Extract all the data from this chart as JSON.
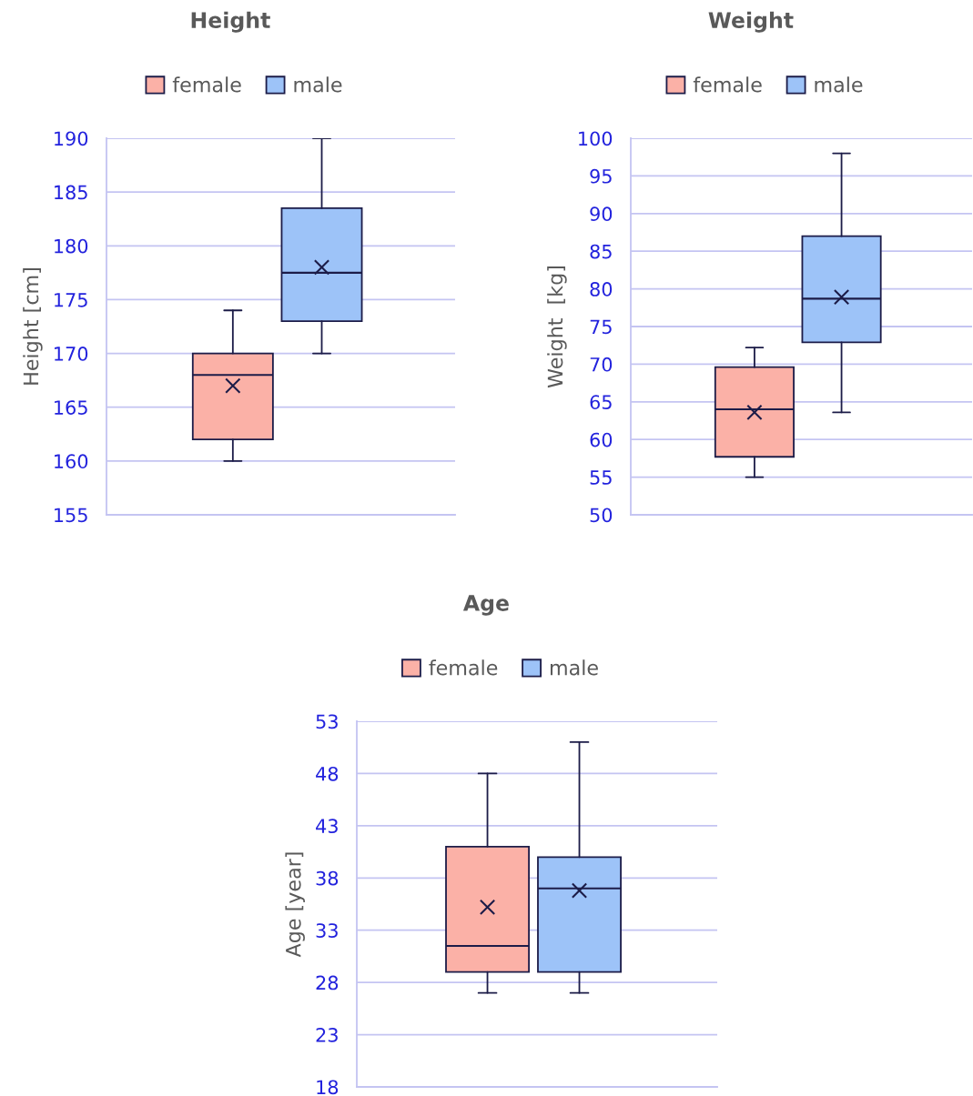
{
  "chart_data": [
    {
      "type": "box",
      "title": "Height",
      "ylabel": "Height [cm]",
      "categories": [
        null
      ],
      "ylim": [
        155,
        190
      ],
      "yticks": [
        155,
        160,
        165,
        170,
        175,
        180,
        185,
        190
      ],
      "grid": "y",
      "legend": "top",
      "tick_labels": "y",
      "marker": "cross",
      "series": [
        {
          "name": "female",
          "color": "#fbb1a7",
          "boxes": [
            {
              "low": 160,
              "q1": 162,
              "median": 168,
              "q3": 170,
              "high": 174,
              "mean": 167
            }
          ]
        },
        {
          "name": "male",
          "color": "#9dc3f8",
          "boxes": [
            {
              "low": 170,
              "q1": 173,
              "median": 177.5,
              "q3": 183.5,
              "high": 190,
              "mean": 178
            }
          ]
        }
      ]
    },
    {
      "type": "box",
      "title": "Weight",
      "ylabel": "Weight  [kg]",
      "categories": [
        null
      ],
      "ylim": [
        50,
        100
      ],
      "yticks": [
        50,
        55,
        60,
        65,
        70,
        75,
        80,
        85,
        90,
        95,
        100
      ],
      "grid": "y",
      "legend": "top",
      "tick_labels": "y",
      "marker": "cross",
      "series": [
        {
          "name": "female",
          "color": "#fbb1a7",
          "boxes": [
            {
              "low": 55,
              "q1": 57.7,
              "median": 64,
              "q3": 69.6,
              "high": 72.2,
              "mean": 63.6
            }
          ]
        },
        {
          "name": "male",
          "color": "#9dc3f8",
          "boxes": [
            {
              "low": 63.6,
              "q1": 72.9,
              "median": 78.7,
              "q3": 87,
              "high": 98,
              "mean": 78.9
            }
          ]
        }
      ]
    },
    {
      "type": "box",
      "title": "Age",
      "ylabel": "Age [year]",
      "categories": [
        null
      ],
      "ylim": [
        18,
        53
      ],
      "yticks": [
        18,
        23,
        28,
        33,
        38,
        43,
        48,
        53
      ],
      "grid": "y",
      "legend": "top",
      "tick_labels": "y",
      "marker": "cross",
      "series": [
        {
          "name": "female",
          "color": "#fbb1a7",
          "boxes": [
            {
              "low": 27,
              "q1": 29,
              "median": 31.5,
              "q3": 41,
              "high": 48,
              "mean": 35.2
            }
          ]
        },
        {
          "name": "male",
          "color": "#9dc3f8",
          "boxes": [
            {
              "low": 27,
              "q1": 29,
              "median": 37,
              "q3": 40,
              "high": 51,
              "mean": 36.8
            }
          ]
        }
      ]
    }
  ]
}
